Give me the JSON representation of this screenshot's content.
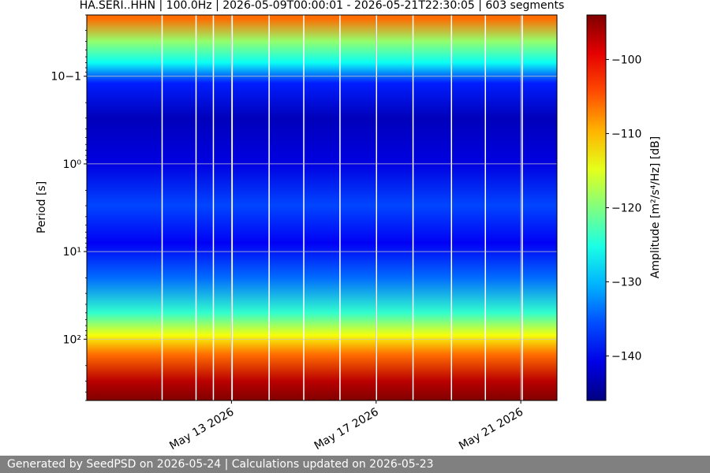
{
  "chart_data": {
    "type": "heatmap",
    "title": "HA.SERI..HHN | 100.0Hz | 2026-05-09T00:00:01 - 2026-05-21T22:30:05 | 603 segments",
    "xlabel": "",
    "ylabel": "Period [s]",
    "y_scale": "log",
    "y_inverted": true,
    "ylim": [
      0.02,
      500
    ],
    "y_ticks": [
      0.1,
      1,
      10,
      100
    ],
    "y_tick_labels": [
      "10−1",
      "10⁰",
      "10¹",
      "10²"
    ],
    "xlim": [
      "2026-05-09",
      "2026-05-22"
    ],
    "x_ticks": [
      "2026-05-13",
      "2026-05-17",
      "2026-05-21"
    ],
    "x_tick_labels": [
      "May 13 2026",
      "May 17 2026",
      "May 21 2026"
    ],
    "grid": true,
    "colormap": "jet",
    "colorbar": {
      "label": "Amplitude [m²/s⁴/Hz] [dB]",
      "ticks": [
        -140,
        -130,
        -120,
        -110,
        -100
      ],
      "tick_labels": [
        "−140",
        "−130",
        "−120",
        "−110",
        "−100"
      ],
      "range": [
        -146,
        -94
      ]
    },
    "period_bands": [
      {
        "period": 0.022,
        "db": -106
      },
      {
        "period": 0.04,
        "db": -119
      },
      {
        "period": 0.07,
        "db": -126
      },
      {
        "period": 0.12,
        "db": -138
      },
      {
        "period": 0.3,
        "db": -143
      },
      {
        "period": 1,
        "db": -141
      },
      {
        "period": 3,
        "db": -136
      },
      {
        "period": 8,
        "db": -140
      },
      {
        "period": 20,
        "db": -134
      },
      {
        "period": 50,
        "db": -124
      },
      {
        "period": 90,
        "db": -114
      },
      {
        "period": 150,
        "db": -106
      },
      {
        "period": 300,
        "db": -97
      },
      {
        "period": 500,
        "db": -94
      }
    ],
    "data_gaps": [
      "2026-05-11T02:00",
      "2026-05-12T00:30",
      "2026-05-12T12:00",
      "2026-05-13T00:30",
      "2026-05-14T01:00",
      "2026-05-15T00:00",
      "2026-05-16T00:00",
      "2026-05-17T00:15",
      "2026-05-18T00:30",
      "2026-05-19T02:00",
      "2026-05-20T00:30",
      "2026-05-21T01:00"
    ]
  },
  "footer": {
    "text": "Generated by SeedPSD on 2026-05-24 | Calculations updated on 2026-05-23"
  }
}
